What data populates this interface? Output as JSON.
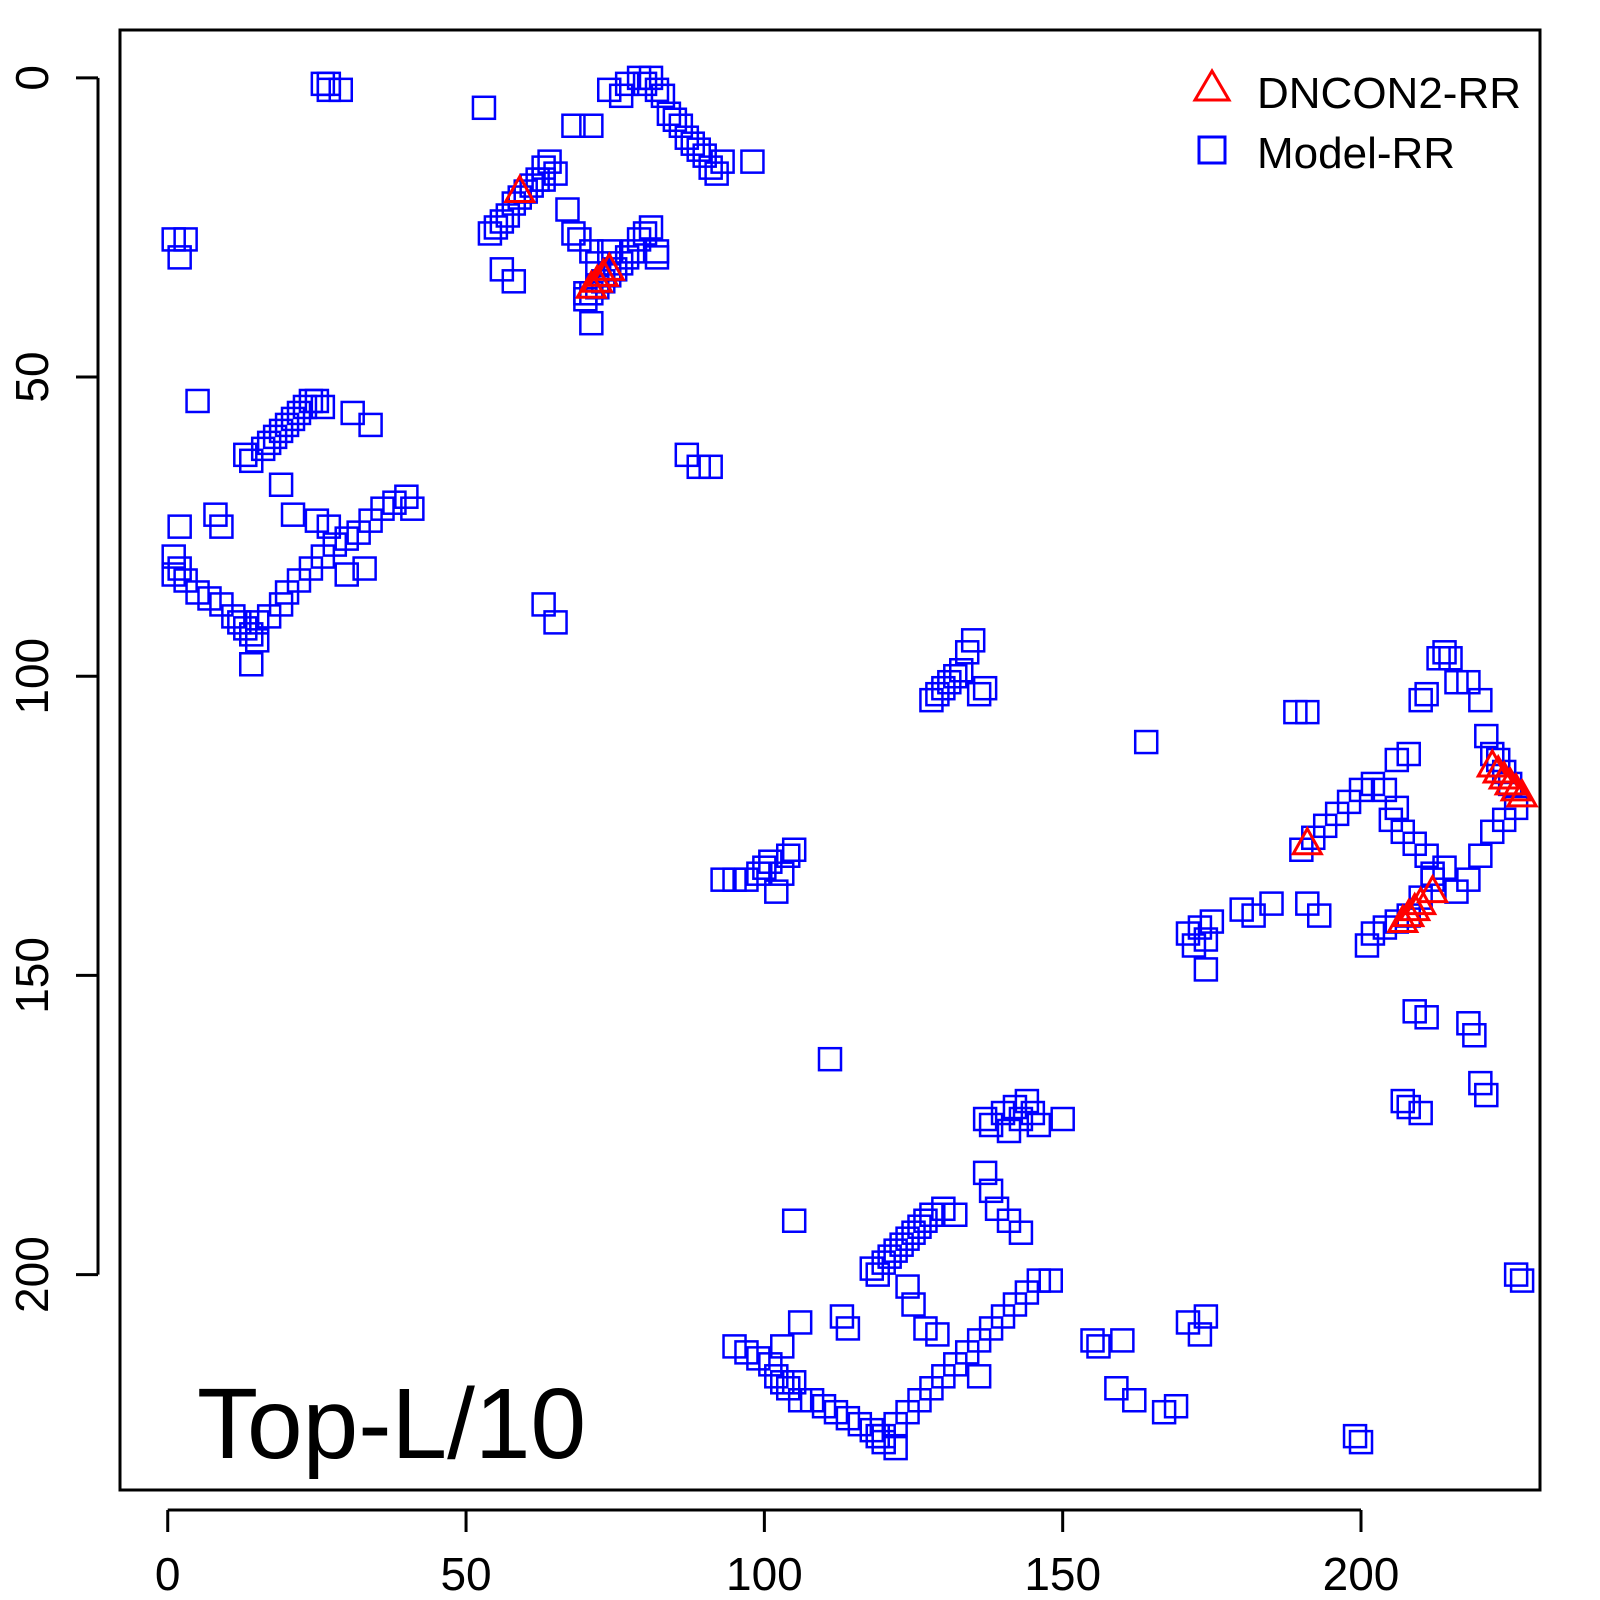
{
  "chart_data": {
    "type": "scatter",
    "title": "",
    "xlabel": "",
    "ylabel": "",
    "xlim": [
      -8,
      230
    ],
    "ylim": [
      236,
      -8
    ],
    "y_axis_inverted": true,
    "grid": false,
    "x_ticks": [
      "0",
      "50",
      "100",
      "150",
      "200"
    ],
    "y_ticks": [
      "0",
      "50",
      "100",
      "150",
      "200"
    ],
    "legend_position": "top-right",
    "annotation": "Top-L/10",
    "series": [
      {
        "name": "DNCON2-RR",
        "marker": "triangle",
        "color": "#ff0000",
        "points": [
          [
            59,
            19
          ],
          [
            71,
            35
          ],
          [
            72,
            34
          ],
          [
            73,
            33
          ],
          [
            74,
            32
          ],
          [
            191,
            128
          ],
          [
            207,
            141
          ],
          [
            208,
            140
          ],
          [
            209,
            139
          ],
          [
            210,
            138
          ],
          [
            212,
            136
          ],
          [
            222,
            115
          ],
          [
            223,
            116
          ],
          [
            224,
            117
          ],
          [
            225,
            118
          ],
          [
            226,
            119
          ],
          [
            227,
            120
          ]
        ]
      },
      {
        "name": "Model-RR",
        "marker": "square",
        "color": "#0000ff",
        "points": [
          [
            26,
            1
          ],
          [
            27,
            2
          ],
          [
            29,
            2
          ],
          [
            27,
            1
          ],
          [
            53,
            5
          ],
          [
            54,
            26
          ],
          [
            55,
            25
          ],
          [
            56,
            24
          ],
          [
            57,
            23
          ],
          [
            58,
            21
          ],
          [
            59,
            20
          ],
          [
            60,
            19
          ],
          [
            61,
            18
          ],
          [
            62,
            17
          ],
          [
            63,
            15
          ],
          [
            64,
            14
          ],
          [
            65,
            16
          ],
          [
            63,
            17
          ],
          [
            56,
            32
          ],
          [
            58,
            34
          ],
          [
            67,
            22
          ],
          [
            68,
            26
          ],
          [
            69,
            27
          ],
          [
            71,
            29
          ],
          [
            72,
            31
          ],
          [
            70,
            36
          ],
          [
            71,
            41
          ],
          [
            74,
            29
          ],
          [
            70,
            37
          ],
          [
            71,
            36
          ],
          [
            72,
            35
          ],
          [
            73,
            34
          ],
          [
            74,
            33
          ],
          [
            75,
            32
          ],
          [
            76,
            31
          ],
          [
            77,
            30
          ],
          [
            78,
            29
          ],
          [
            79,
            27
          ],
          [
            80,
            26
          ],
          [
            81,
            25
          ],
          [
            82,
            29
          ],
          [
            82,
            30
          ],
          [
            68,
            8
          ],
          [
            71,
            8
          ],
          [
            74,
            2
          ],
          [
            76,
            3
          ],
          [
            77,
            1
          ],
          [
            79,
            0
          ],
          [
            80,
            1
          ],
          [
            81,
            0
          ],
          [
            82,
            2
          ],
          [
            83,
            3
          ],
          [
            84,
            6
          ],
          [
            85,
            7
          ],
          [
            86,
            8
          ],
          [
            87,
            10
          ],
          [
            88,
            11
          ],
          [
            89,
            12
          ],
          [
            90,
            13
          ],
          [
            91,
            15
          ],
          [
            92,
            16
          ],
          [
            93,
            14
          ],
          [
            98,
            14
          ],
          [
            1,
            27
          ],
          [
            2,
            30
          ],
          [
            3,
            27
          ],
          [
            5,
            54
          ],
          [
            1,
            80
          ],
          [
            2,
            82
          ],
          [
            3,
            84
          ],
          [
            5,
            86
          ],
          [
            7,
            87
          ],
          [
            9,
            88
          ],
          [
            11,
            90
          ],
          [
            12,
            91
          ],
          [
            13,
            92
          ],
          [
            14,
            93
          ],
          [
            15,
            94
          ],
          [
            14,
            98
          ],
          [
            2,
            75
          ],
          [
            1,
            83
          ],
          [
            8,
            73
          ],
          [
            9,
            75
          ],
          [
            15,
            91
          ],
          [
            17,
            90
          ],
          [
            19,
            88
          ],
          [
            20,
            86
          ],
          [
            22,
            84
          ],
          [
            24,
            82
          ],
          [
            26,
            80
          ],
          [
            28,
            78
          ],
          [
            30,
            77
          ],
          [
            32,
            76
          ],
          [
            34,
            74
          ],
          [
            36,
            72
          ],
          [
            38,
            71
          ],
          [
            40,
            70
          ],
          [
            41,
            72
          ],
          [
            30,
            83
          ],
          [
            33,
            82
          ],
          [
            13,
            63
          ],
          [
            14,
            64
          ],
          [
            16,
            62
          ],
          [
            17,
            61
          ],
          [
            18,
            60
          ],
          [
            19,
            59
          ],
          [
            20,
            58
          ],
          [
            21,
            57
          ],
          [
            22,
            56
          ],
          [
            23,
            55
          ],
          [
            24,
            54
          ],
          [
            25,
            54
          ],
          [
            26,
            55
          ],
          [
            31,
            56
          ],
          [
            34,
            58
          ],
          [
            19,
            68
          ],
          [
            21,
            73
          ],
          [
            25,
            74
          ],
          [
            27,
            75
          ],
          [
            87,
            63
          ],
          [
            89,
            65
          ],
          [
            91,
            65
          ],
          [
            63,
            88
          ],
          [
            65,
            91
          ],
          [
            128,
            104
          ],
          [
            129,
            103
          ],
          [
            130,
            102
          ],
          [
            131,
            101
          ],
          [
            132,
            100
          ],
          [
            133,
            99
          ],
          [
            134,
            96
          ],
          [
            135,
            94
          ],
          [
            136,
            103
          ],
          [
            137,
            102
          ],
          [
            93,
            134
          ],
          [
            95,
            134
          ],
          [
            97,
            134
          ],
          [
            99,
            133
          ],
          [
            100,
            132
          ],
          [
            101,
            131
          ],
          [
            102,
            136
          ],
          [
            103,
            133
          ],
          [
            104,
            130
          ],
          [
            105,
            129
          ],
          [
            105,
            191
          ],
          [
            111,
            164
          ],
          [
            95,
            212
          ],
          [
            97,
            213
          ],
          [
            99,
            214
          ],
          [
            101,
            215
          ],
          [
            102,
            217
          ],
          [
            103,
            218
          ],
          [
            104,
            219
          ],
          [
            105,
            218
          ],
          [
            106,
            221
          ],
          [
            108,
            221
          ],
          [
            110,
            222
          ],
          [
            112,
            223
          ],
          [
            114,
            224
          ],
          [
            116,
            225
          ],
          [
            118,
            226
          ],
          [
            119,
            227
          ],
          [
            120,
            228
          ],
          [
            122,
            229
          ],
          [
            103,
            212
          ],
          [
            106,
            208
          ],
          [
            113,
            207
          ],
          [
            114,
            209
          ],
          [
            120,
            227
          ],
          [
            122,
            225
          ],
          [
            124,
            223
          ],
          [
            126,
            221
          ],
          [
            128,
            219
          ],
          [
            130,
            217
          ],
          [
            132,
            215
          ],
          [
            134,
            213
          ],
          [
            136,
            211
          ],
          [
            138,
            209
          ],
          [
            140,
            207
          ],
          [
            142,
            205
          ],
          [
            144,
            203
          ],
          [
            146,
            201
          ],
          [
            148,
            201
          ],
          [
            136,
            217
          ],
          [
            118,
            199
          ],
          [
            119,
            200
          ],
          [
            120,
            198
          ],
          [
            121,
            197
          ],
          [
            122,
            196
          ],
          [
            123,
            195
          ],
          [
            124,
            194
          ],
          [
            125,
            193
          ],
          [
            126,
            192
          ],
          [
            127,
            191
          ],
          [
            128,
            190
          ],
          [
            130,
            189
          ],
          [
            132,
            190
          ],
          [
            124,
            202
          ],
          [
            125,
            205
          ],
          [
            127,
            209
          ],
          [
            129,
            210
          ],
          [
            137,
            183
          ],
          [
            138,
            186
          ],
          [
            139,
            189
          ],
          [
            141,
            191
          ],
          [
            143,
            193
          ],
          [
            137,
            174
          ],
          [
            138,
            175
          ],
          [
            140,
            173
          ],
          [
            141,
            176
          ],
          [
            142,
            172
          ],
          [
            143,
            174
          ],
          [
            144,
            171
          ],
          [
            145,
            173
          ],
          [
            146,
            175
          ],
          [
            150,
            174
          ],
          [
            155,
            211
          ],
          [
            156,
            212
          ],
          [
            160,
            211
          ],
          [
            159,
            219
          ],
          [
            162,
            221
          ],
          [
            167,
            223
          ],
          [
            169,
            222
          ],
          [
            171,
            208
          ],
          [
            173,
            210
          ],
          [
            174,
            207
          ],
          [
            199,
            227
          ],
          [
            200,
            228
          ],
          [
            171,
            143
          ],
          [
            172,
            145
          ],
          [
            173,
            142
          ],
          [
            174,
            144
          ],
          [
            175,
            141
          ],
          [
            174,
            149
          ],
          [
            180,
            139
          ],
          [
            182,
            140
          ],
          [
            185,
            138
          ],
          [
            191,
            138
          ],
          [
            193,
            140
          ],
          [
            190,
            129
          ],
          [
            192,
            127
          ],
          [
            194,
            125
          ],
          [
            196,
            123
          ],
          [
            198,
            121
          ],
          [
            200,
            119
          ],
          [
            202,
            118
          ],
          [
            204,
            119
          ],
          [
            206,
            122
          ],
          [
            201,
            145
          ],
          [
            202,
            143
          ],
          [
            204,
            142
          ],
          [
            206,
            141
          ],
          [
            208,
            140
          ],
          [
            210,
            137
          ],
          [
            212,
            134
          ],
          [
            214,
            132
          ],
          [
            216,
            136
          ],
          [
            218,
            134
          ],
          [
            220,
            130
          ],
          [
            222,
            126
          ],
          [
            224,
            124
          ],
          [
            226,
            122
          ],
          [
            205,
            124
          ],
          [
            207,
            126
          ],
          [
            209,
            128
          ],
          [
            211,
            130
          ],
          [
            212,
            133
          ],
          [
            189,
            106
          ],
          [
            191,
            106
          ],
          [
            164,
            111
          ],
          [
            206,
            114
          ],
          [
            208,
            113
          ],
          [
            210,
            104
          ],
          [
            211,
            103
          ],
          [
            213,
            97
          ],
          [
            214,
            96
          ],
          [
            215,
            97
          ],
          [
            216,
            101
          ],
          [
            218,
            101
          ],
          [
            220,
            104
          ],
          [
            221,
            110
          ],
          [
            222,
            113
          ],
          [
            223,
            114
          ],
          [
            224,
            116
          ],
          [
            225,
            118
          ],
          [
            209,
            156
          ],
          [
            211,
            157
          ],
          [
            218,
            158
          ],
          [
            219,
            160
          ],
          [
            220,
            168
          ],
          [
            221,
            170
          ],
          [
            226,
            200
          ],
          [
            227,
            201
          ],
          [
            207,
            171
          ],
          [
            208,
            172
          ],
          [
            210,
            173
          ]
        ]
      }
    ]
  }
}
